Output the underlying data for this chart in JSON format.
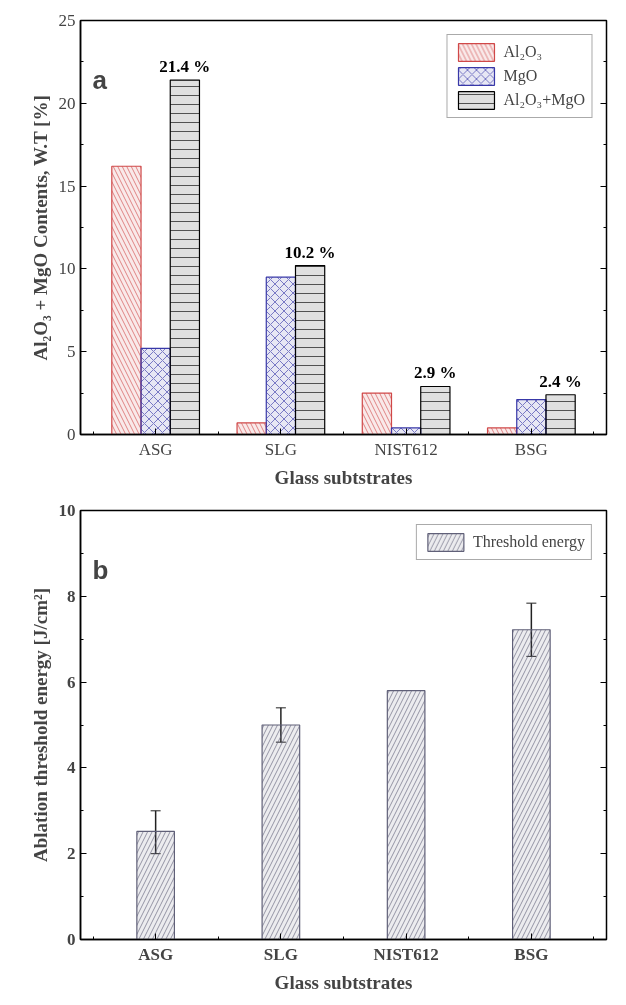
{
  "chart_data": [
    {
      "type": "bar",
      "ylabel": "Al₂O₃ + MgO Contents, W.T [%]",
      "xlabel": "Glass subtstrates",
      "annotations": [
        "a"
      ],
      "categories": [
        "ASG",
        "SLG",
        "NIST612",
        "BSG"
      ],
      "series": [
        {
          "name": "Al₂O₃",
          "color": "#d04848",
          "values": [
            16.2,
            0.7,
            2.5,
            0.4
          ]
        },
        {
          "name": "MgO",
          "color": "#3838a8",
          "values": [
            5.2,
            9.5,
            0.4,
            2.1
          ]
        },
        {
          "name": "Al₂O₃+MgO",
          "color": "#000000",
          "values": [
            21.4,
            10.2,
            2.9,
            2.4
          ],
          "value_labels": [
            "21.4 %",
            "10.2 %",
            "2.9 %",
            "2.4 %"
          ]
        }
      ],
      "ylim": [
        0,
        25
      ],
      "yticks": [
        0,
        5,
        10,
        15,
        20,
        25
      ],
      "legend": "top right",
      "grid": false
    },
    {
      "type": "bar",
      "ylabel": "Ablation threshold energy [J/cm²]",
      "xlabel": "Glass subtstrates",
      "annotations": [
        "b"
      ],
      "categories": [
        "ASG",
        "SLG",
        "NIST612",
        "BSG"
      ],
      "series": [
        {
          "name": "Threshold energy",
          "color": "#606078",
          "values": [
            2.52,
            5.0,
            5.8,
            7.22
          ],
          "errors": [
            [
              2.0,
              3.0
            ],
            [
              4.6,
              5.4
            ],
            null,
            [
              6.6,
              7.84
            ]
          ]
        }
      ],
      "ylim": [
        0,
        10
      ],
      "yticks": [
        0,
        2,
        4,
        6,
        8,
        10
      ],
      "legend": "top right",
      "grid": false
    }
  ]
}
